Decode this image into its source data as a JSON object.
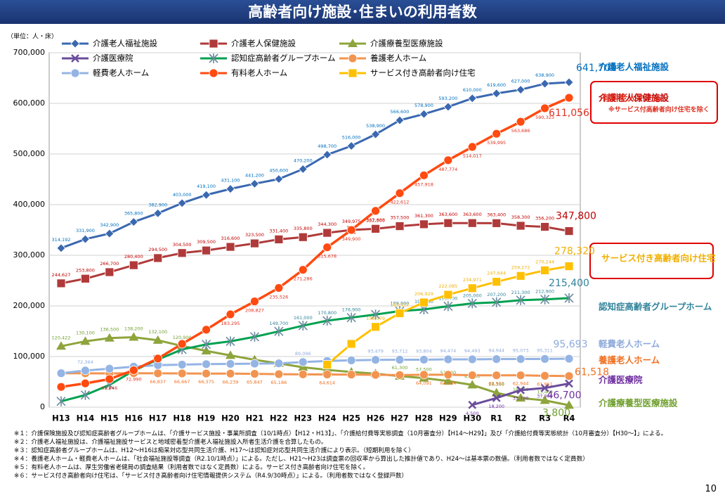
{
  "chart_data": {
    "type": "line",
    "title": "高齢者向け施設･住まいの利用者数",
    "unit_label": "（単位：人・床）",
    "categories": [
      "H13",
      "H14",
      "H15",
      "H16",
      "H17",
      "H18",
      "H19",
      "H20",
      "H21",
      "H22",
      "H23",
      "H24",
      "H25",
      "H26",
      "H27",
      "H28",
      "H29",
      "H30",
      "R1",
      "R2",
      "R3",
      "R4"
    ],
    "ylim": [
      0,
      700000
    ],
    "yticks": [
      0,
      {
        "value": 100000,
        "label": "100,000"
      },
      {
        "value": 200000,
        "label": "200,000"
      },
      {
        "value": 300000,
        "label": "300,000"
      },
      {
        "value": 400000,
        "label": "400,000"
      },
      {
        "value": 500000,
        "label": "500,000"
      },
      {
        "value": 600000,
        "label": "600,000"
      },
      {
        "value": 700000,
        "label": "700,000"
      }
    ],
    "series": [
      {
        "name": "介護老人福祉施設",
        "color": "#3a68b0",
        "label_color": "#0070c0",
        "marker": "diamond",
        "values": [
          314192,
          331900,
          342900,
          365800,
          382900,
          403000,
          419100,
          431100,
          441200,
          450600,
          470200,
          498700,
          516000,
          538900,
          566600,
          578900,
          593200,
          610000,
          619600,
          627000,
          638900,
          641700
        ],
        "value_labels": [
          "314,192",
          "331,900",
          "342,900",
          "365,800",
          "382,900",
          "403,000",
          "419,100",
          "431,100",
          "441,200",
          "450,600",
          "470,200",
          "498,700",
          "516,000",
          "538,900",
          "566,600",
          "578,900",
          "593,200",
          "610,000",
          "619,600",
          "627,000",
          "638,900",
          "641,700"
        ]
      },
      {
        "name": "介護老人保健施設",
        "color": "#b03a3a",
        "label_color": "#c00000",
        "marker": "square",
        "values": [
          244627,
          253800,
          266700,
          280400,
          294500,
          304500,
          309500,
          316600,
          323500,
          331400,
          335800,
          344300,
          349975,
          352300,
          357500,
          361300,
          363600,
          363600,
          363400,
          358300,
          356200,
          347800
        ],
        "value_labels": [
          "244,627",
          "253,800",
          "266,700",
          "280,400",
          "294,500",
          "304,500",
          "309,500",
          "316,600",
          "323,500",
          "331,400",
          "335,800",
          "344,300",
          "349,975",
          "352,300",
          "357,500",
          "361,300",
          "363,600",
          "363,600",
          "363,400",
          "358,300",
          "356,200",
          "347,800"
        ]
      },
      {
        "name": "介護療養型医療施設",
        "color": "#8ea43c",
        "label_color": "#70a030",
        "marker": "triangle",
        "values": [
          120422,
          130100,
          136500,
          138200,
          132100,
          120900,
          111099,
          102300,
          93500,
          86500,
          78800,
          73700,
          69400,
          66200,
          61300,
          57500,
          51600,
          43900,
          28300,
          18000,
          13400,
          3800
        ],
        "value_labels": [
          "120,422",
          "130,100",
          "136,500",
          "138,200",
          "132,100",
          "120,900",
          null,
          null,
          null,
          null,
          null,
          null,
          null,
          null,
          "61,300",
          "57,500",
          "51,600",
          "43,900",
          "28,300",
          "18,000",
          "13,400",
          "3,800"
        ]
      },
      {
        "name": "介護医療院",
        "color": "#6a4c9c",
        "label_color": "#7030a0",
        "marker": "x",
        "values": [
          null,
          null,
          null,
          null,
          null,
          null,
          null,
          null,
          null,
          null,
          null,
          null,
          null,
          null,
          null,
          null,
          null,
          4500,
          18200,
          33700,
          37900,
          46700
        ],
        "value_labels": [
          null,
          null,
          null,
          null,
          null,
          null,
          null,
          null,
          null,
          null,
          null,
          null,
          null,
          null,
          null,
          null,
          null,
          "4,500",
          "18,200",
          "33,700",
          "37,900",
          "46,700"
        ]
      },
      {
        "name": "認知症高齢者グループホーム",
        "color": "#00a050",
        "label_color": "#31849b",
        "marker": "star",
        "values": [
          11600,
          24000,
          44000,
          72000,
          94000,
          114000,
          124000,
          130000,
          139000,
          149700,
          161000,
          170800,
          176900,
          183000,
          189800,
          193100,
          199400,
          205000,
          207200,
          211300,
          212900,
          215400
        ],
        "value_labels": [
          null,
          null,
          null,
          null,
          null,
          null,
          null,
          null,
          null,
          "149,700",
          "161,000",
          "170,800",
          "176,900",
          null,
          "189,800",
          "193,100",
          "199,400",
          "205,000",
          "207,200",
          "211,300",
          "212,900",
          "215,400"
        ]
      },
      {
        "name": "養護老人ホーム",
        "color": "#f29450",
        "label_color": "#f07020",
        "marker": "circle",
        "values": [
          67000,
          66800,
          66600,
          67100,
          66837,
          66667,
          66375,
          66239,
          65847,
          65186,
          64800,
          64614,
          64300,
          63900,
          63400,
          64091,
          64084,
          63100,
          62911,
          62944,
          61951,
          61518
        ],
        "value_labels": [
          null,
          null,
          null,
          null,
          "66,837",
          "66,667",
          "66,375",
          "66,239",
          "65,847",
          "65,186",
          null,
          "64,614",
          null,
          null,
          null,
          "64,091",
          "64,084",
          null,
          "62,911",
          "62,944",
          "61,951",
          "61,518"
        ]
      },
      {
        "name": "軽費老人ホーム",
        "color": "#94b4e4",
        "label_color": "#8eaadb",
        "marker": "circle",
        "values": [
          67000,
          72364,
          76000,
          80000,
          83000,
          84000,
          85000,
          85500,
          86000,
          86500,
          89096,
          91400,
          92500,
          93479,
          93712,
          93804,
          94474,
          94493,
          94944,
          95073,
          95311,
          95693
        ],
        "value_labels": [
          null,
          "72,364",
          null,
          null,
          null,
          null,
          null,
          null,
          null,
          null,
          "89,096",
          null,
          null,
          "93,479",
          "93,712",
          "93,804",
          "94,474",
          "94,493",
          "94,944",
          "95,073",
          "95,311",
          "95,693"
        ]
      },
      {
        "name": "有料老人ホーム",
        "color": "#ff4a10",
        "label_color": "#e03020",
        "marker": "circle",
        "values": [
          40000,
          47000,
          55446,
          72990,
          96000,
          125000,
          153000,
          183295,
          208827,
          235526,
          271286,
          315678,
          349900,
          387666,
          422612,
          457918,
          487774,
          514017,
          539995,
          563686,
          590323,
          611056
        ],
        "value_labels": [
          null,
          null,
          "55,446",
          "72,990",
          null,
          null,
          null,
          "183,295",
          "208,827",
          "235,526",
          "271,286",
          "315,678",
          "349,900",
          "387,666",
          "422,612",
          "457,918",
          "487,774",
          "514,017",
          "539,995",
          "563,686",
          "590,323",
          "611,056"
        ]
      },
      {
        "name": "サービス付き高齢者向け住宅",
        "color": "#ffc000",
        "label_color": "#f0b000",
        "marker": "square",
        "values": [
          null,
          null,
          null,
          null,
          null,
          null,
          null,
          null,
          null,
          null,
          null,
          84000,
          125000,
          158579,
          185512,
          206929,
          222085,
          234971,
          247644,
          259272,
          270244,
          278320
        ],
        "value_labels": [
          null,
          null,
          null,
          null,
          null,
          null,
          null,
          null,
          null,
          null,
          null,
          null,
          null,
          "158,579",
          "185,512",
          "206,929",
          "222,085",
          "234,971",
          "247,644",
          "259,272",
          "270,244",
          "278,320"
        ]
      }
    ],
    "annotation": "※サービス付高齢者向け住宅を除く",
    "footnotes": [
      "※１：介護保険施設及び認知症高齢者グループホームは、「介護サービス施設・事業所調査（10/1時点）【H12・H13】」、「介護給付費等実態調査（10月審査分）【H14～H29】」及び「介護給付費等実態統計（10月審査分）【H30～】」による。",
      "※２：介護老人福祉施設は、介護福祉施設サービスと地域密着型介護老人福祉施設入所者生活介護を合算したもの。",
      "※３：認知症高齢者グループホームは、H12～H16は痴呆対応型共同生活介護、H17～は認知症対応型共同生活介護により表示。（短期利用を除く）",
      "※４：養護老人ホーム・軽費老人ホームは、「社会福祉施設等調査（R2.10/1時点）」による。ただし、H21～H23は調査票の回収率から算出した推計値であり、H24～は基本票の数値。（利用者数ではなく定員数）",
      "※５：有料老人ホームは、厚生労働省老健局の調査結果（利用者数ではなく定員数）による。サービス付き高齢者向け住宅を除く。",
      "※６：サービス付き高齢者向け住宅は、「サービス付き高齢者向け住宅情報提供システム（R4.9/30時点）」による。（利用者数ではなく登録戸数）"
    ],
    "page_number": "10"
  }
}
